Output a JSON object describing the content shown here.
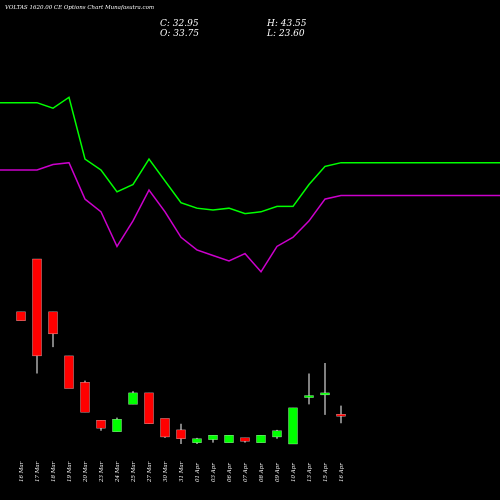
{
  "header": {
    "title": "VOLTAS 1620.00 CE Options  Chart Munafasutra.com",
    "close": "C: 32.95",
    "open": "O: 33.75",
    "high": "H: 43.55",
    "low": "L: 23.60"
  },
  "colors": {
    "background": "#000000",
    "up": "#00ff00",
    "down": "#ff0000",
    "upper_line": "#00ff00",
    "lower_line": "#cc00cc",
    "wick": "#ffffff",
    "text": "#ffffff"
  },
  "chart_data": {
    "type": "candlestick",
    "title": "VOLTAS 1620.00 CE Options  Chart Munafasutra.com",
    "categories": [
      "16 Mar",
      "17 Mar",
      "18 Mar",
      "19 Mar",
      "20 Mar",
      "23 Mar",
      "24 Mar",
      "25 Mar",
      "27 Mar",
      "30 Mar",
      "31 Mar",
      "01 Apr",
      "03 Apr",
      "06 Apr",
      "07 Apr",
      "08 Apr",
      "09 Apr",
      "10 Apr",
      "13 Apr",
      "15 Apr",
      "16 Apr"
    ],
    "candles": [
      {
        "open": 150,
        "high": 150,
        "low": 140,
        "close": 140
      },
      {
        "open": 210,
        "high": 210,
        "low": 80,
        "close": 100
      },
      {
        "open": 150,
        "high": 150,
        "low": 110,
        "close": 125
      },
      {
        "open": 100,
        "high": 100,
        "low": 63,
        "close": 63
      },
      {
        "open": 70,
        "high": 72,
        "low": 36,
        "close": 36
      },
      {
        "open": 27,
        "high": 27,
        "low": 15,
        "close": 18
      },
      {
        "open": 14,
        "high": 30,
        "low": 14,
        "close": 28
      },
      {
        "open": 45,
        "high": 60,
        "low": 45,
        "close": 58
      },
      {
        "open": 58,
        "high": 58,
        "low": 23,
        "close": 23
      },
      {
        "open": 29,
        "high": 29,
        "low": 7,
        "close": 8
      },
      {
        "open": 16,
        "high": 23,
        "low": 0,
        "close": 6
      },
      {
        "open": 1.5,
        "high": 7,
        "low": 0,
        "close": 6
      },
      {
        "open": 5,
        "high": 10,
        "low": 1.5,
        "close": 10
      },
      {
        "open": 1.5,
        "high": 10,
        "low": 1.5,
        "close": 10
      },
      {
        "open": 7,
        "high": 7,
        "low": 1.5,
        "close": 3
      },
      {
        "open": 1.5,
        "high": 10,
        "low": 1.5,
        "close": 10
      },
      {
        "open": 8,
        "high": 16,
        "low": 6,
        "close": 15
      },
      {
        "open": 0,
        "high": 41,
        "low": 0,
        "close": 41
      },
      {
        "open": 55,
        "high": 80,
        "low": 45,
        "close": 55
      },
      {
        "open": 58,
        "high": 92,
        "low": 33,
        "close": 58
      },
      {
        "open": 33.75,
        "high": 43.55,
        "low": 23.6,
        "close": 32.95
      }
    ],
    "upper_band": [
      253,
      253,
      250,
      256,
      222,
      216,
      204,
      208,
      222,
      210,
      198,
      195,
      194,
      195,
      192,
      193,
      196,
      196,
      208,
      218,
      220
    ],
    "lower_band": [
      216,
      216,
      219,
      220,
      200,
      193,
      174,
      188,
      205,
      193,
      179,
      172,
      169,
      166,
      170,
      160,
      174,
      179,
      188,
      200,
      202
    ]
  }
}
